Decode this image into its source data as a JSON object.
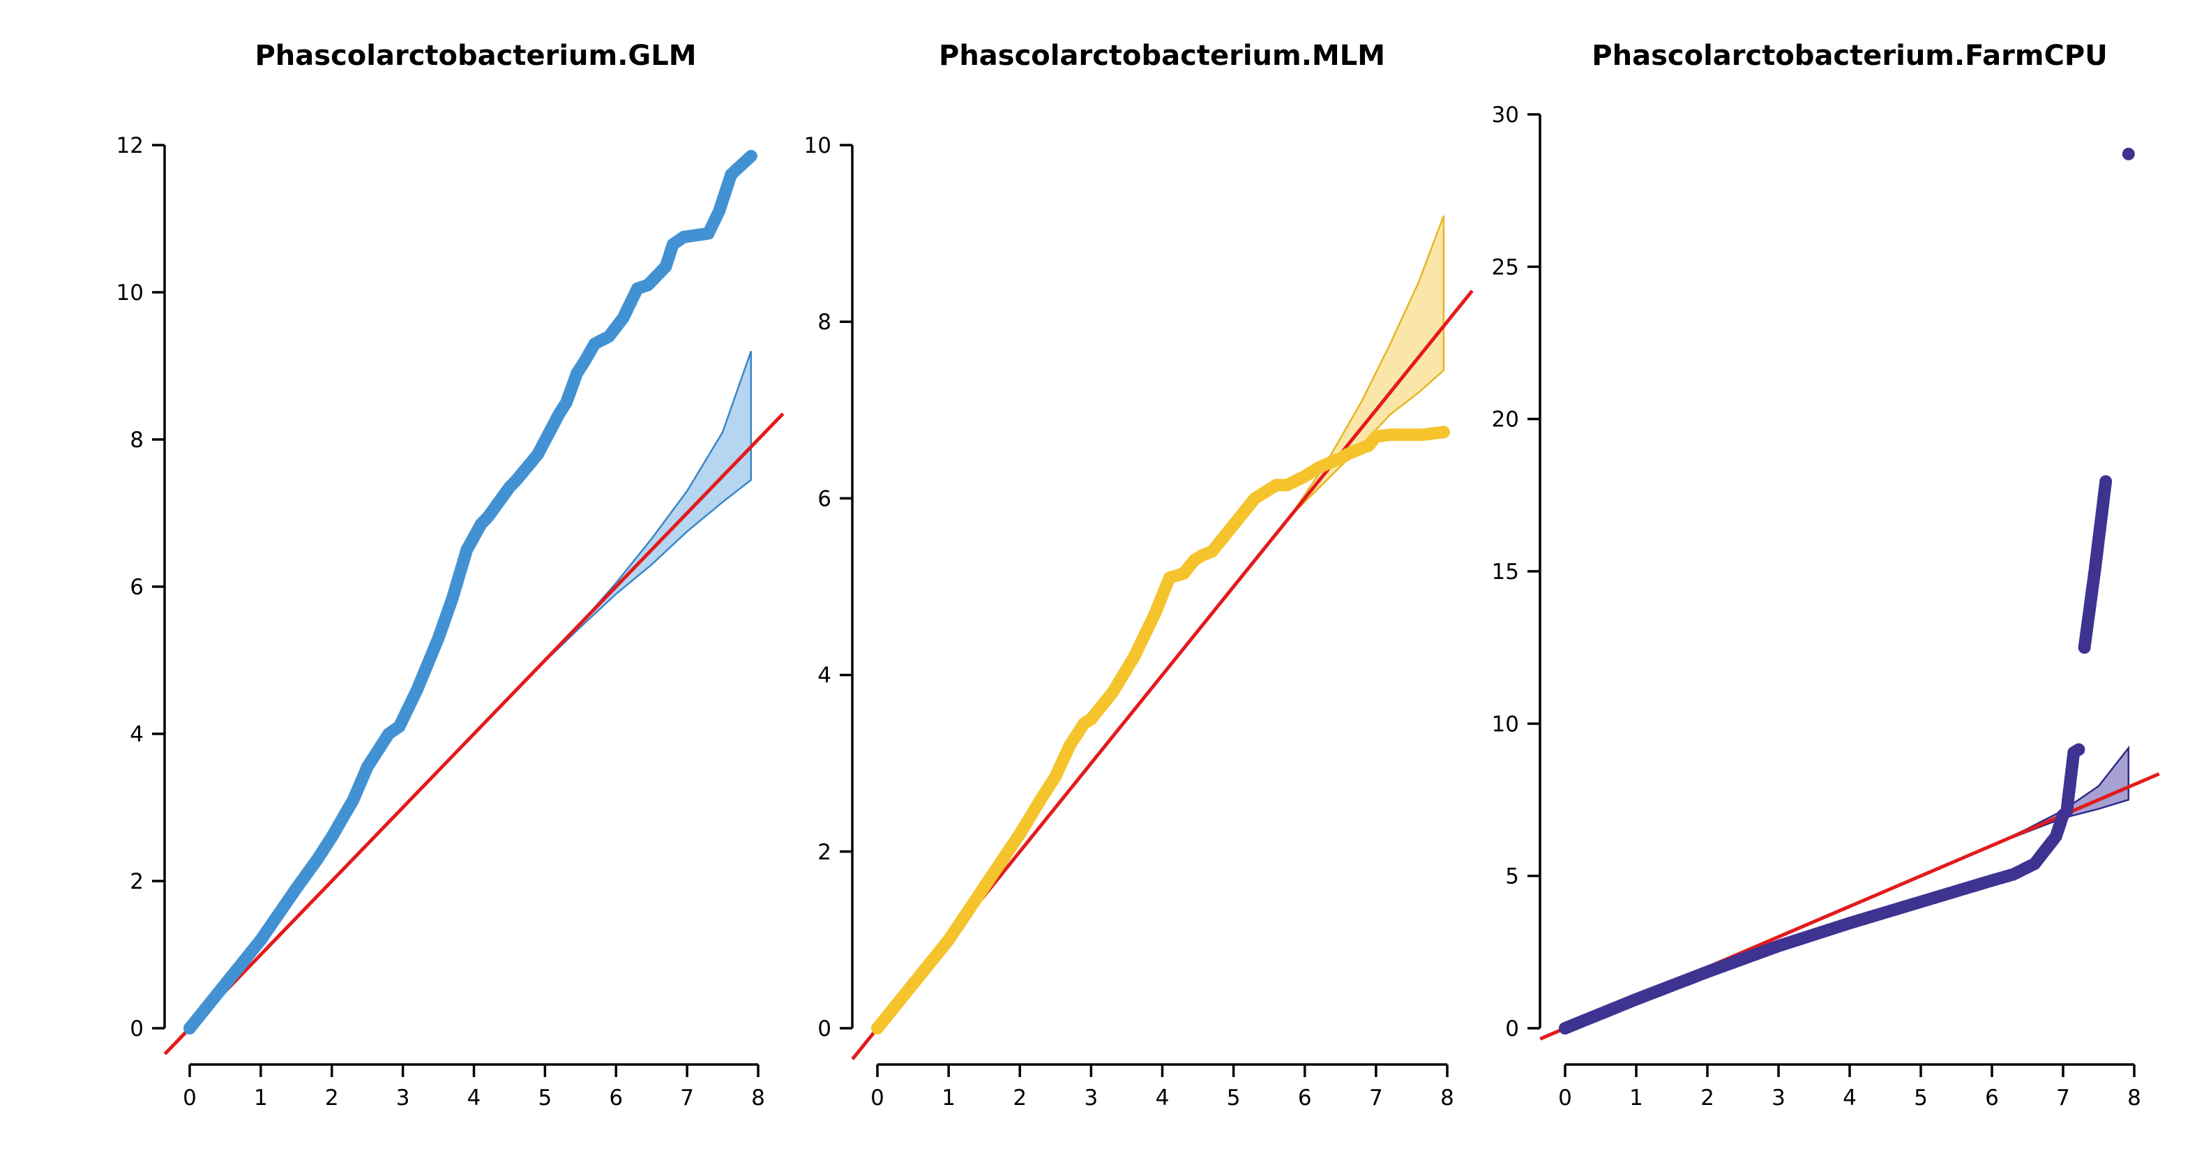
{
  "chart_data": [
    {
      "type": "scatter",
      "title": "Phascolarctobacterium.GLM",
      "xlabel": "",
      "ylabel": "",
      "xlim": [
        0,
        8
      ],
      "ylim": [
        0,
        12
      ],
      "x_ticks": [
        0,
        1,
        2,
        3,
        4,
        5,
        6,
        7,
        8
      ],
      "y_ticks": [
        0,
        2,
        4,
        6,
        8,
        10,
        12
      ],
      "grid": false,
      "point_color": "#4292d3",
      "band_fill": "#aed0ee",
      "band_stroke": "#3a86c8",
      "reference_line_color": "#e31a1c",
      "observed": {
        "x": [
          0,
          0.5,
          1.0,
          1.5,
          1.8,
          2.0,
          2.3,
          2.5,
          2.8,
          2.95,
          3.2,
          3.5,
          3.7,
          3.9,
          4.1,
          4.2,
          4.5,
          4.6,
          4.9,
          5.2,
          5.3,
          5.45,
          5.55,
          5.7,
          5.9,
          6.1,
          6.3,
          6.45,
          6.7,
          6.8,
          6.95,
          7.3,
          7.45,
          7.62,
          7.9
        ],
        "y": [
          0,
          0.6,
          1.2,
          1.9,
          2.3,
          2.6,
          3.1,
          3.55,
          4.0,
          4.1,
          4.6,
          5.3,
          5.85,
          6.5,
          6.85,
          6.95,
          7.35,
          7.45,
          7.8,
          8.35,
          8.5,
          8.9,
          9.05,
          9.3,
          9.4,
          9.65,
          10.05,
          10.1,
          10.35,
          10.65,
          10.75,
          10.8,
          11.1,
          11.6,
          11.85
        ]
      },
      "ci_band": {
        "x": [
          4.8,
          5.5,
          6.0,
          6.5,
          7.0,
          7.5,
          7.9
        ],
        "upper": [
          4.8,
          5.5,
          6.05,
          6.65,
          7.3,
          8.1,
          9.2
        ],
        "lower": [
          4.8,
          5.45,
          5.9,
          6.3,
          6.75,
          7.15,
          7.45
        ]
      }
    },
    {
      "type": "scatter",
      "title": "Phascolarctobacterium.MLM",
      "xlabel": "",
      "ylabel": "",
      "xlim": [
        0,
        8
      ],
      "ylim": [
        0,
        10
      ],
      "x_ticks": [
        0,
        1,
        2,
        3,
        4,
        5,
        6,
        7,
        8
      ],
      "y_ticks": [
        0,
        2,
        4,
        6,
        8,
        10
      ],
      "grid": false,
      "point_color": "#f5c32c",
      "band_fill": "#fbe3a0",
      "band_stroke": "#e6b520",
      "reference_line_color": "#e31a1c",
      "observed": {
        "x": [
          0,
          0.5,
          1.0,
          1.5,
          2.0,
          2.3,
          2.5,
          2.7,
          2.9,
          3.0,
          3.3,
          3.6,
          3.9,
          4.1,
          4.3,
          4.45,
          4.55,
          4.7,
          4.9,
          5.1,
          5.3,
          5.5,
          5.6,
          5.75,
          6.0,
          6.2,
          6.4,
          6.5,
          6.6,
          6.9,
          7.0,
          7.2,
          7.4,
          7.65,
          7.95
        ],
        "y": [
          0,
          0.5,
          1.0,
          1.6,
          2.2,
          2.6,
          2.85,
          3.2,
          3.45,
          3.5,
          3.8,
          4.2,
          4.7,
          5.1,
          5.15,
          5.3,
          5.35,
          5.4,
          5.6,
          5.8,
          6.0,
          6.1,
          6.15,
          6.15,
          6.25,
          6.35,
          6.42,
          6.45,
          6.5,
          6.6,
          6.7,
          6.72,
          6.72,
          6.72,
          6.75
        ]
      },
      "ci_band": {
        "x": [
          5.8,
          6.3,
          6.8,
          7.2,
          7.6,
          7.95
        ],
        "upper": [
          5.8,
          6.4,
          7.1,
          7.75,
          8.45,
          9.2
        ],
        "lower": [
          5.8,
          6.2,
          6.6,
          6.95,
          7.2,
          7.45
        ]
      }
    },
    {
      "type": "scatter",
      "title": "Phascolarctobacterium.FarmCPU",
      "xlabel": "",
      "ylabel": "",
      "xlim": [
        0,
        8
      ],
      "ylim": [
        0,
        30
      ],
      "x_ticks": [
        0,
        1,
        2,
        3,
        4,
        5,
        6,
        7,
        8
      ],
      "y_ticks": [
        0,
        5,
        10,
        15,
        20,
        25,
        30
      ],
      "grid": false,
      "point_color": "#3f3391",
      "band_fill": "#9c97cc",
      "band_stroke": "#2e2a8a",
      "reference_line_color": "#e31a1c",
      "observed": {
        "x": [
          0,
          1,
          2,
          3,
          4,
          5,
          5.5,
          6,
          6.3,
          6.6,
          6.7,
          6.8,
          6.9,
          7.0,
          7.05,
          7.15,
          7.22,
          7.3,
          7.45,
          7.6,
          7.92
        ],
        "y": [
          0,
          0.95,
          1.85,
          2.7,
          3.45,
          4.15,
          4.5,
          4.85,
          5.05,
          5.4,
          5.7,
          6.0,
          6.3,
          7.0,
          7.1,
          9.05,
          9.15,
          12.5,
          15.1,
          17.95,
          28.7
        ]
      },
      "ci_band": {
        "x": [
          6.0,
          6.5,
          7.0,
          7.5,
          7.92
        ],
        "upper": [
          6.0,
          6.55,
          7.15,
          7.95,
          9.2
        ],
        "lower": [
          6.0,
          6.45,
          6.9,
          7.2,
          7.5
        ]
      }
    }
  ]
}
